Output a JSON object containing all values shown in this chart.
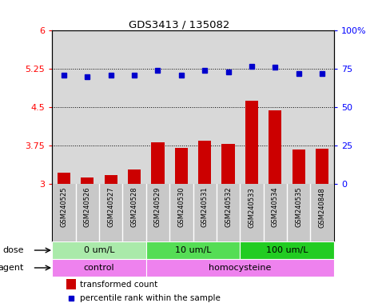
{
  "title": "GDS3413 / 135082",
  "samples": [
    "GSM240525",
    "GSM240526",
    "GSM240527",
    "GSM240528",
    "GSM240529",
    "GSM240530",
    "GSM240531",
    "GSM240532",
    "GSM240533",
    "GSM240534",
    "GSM240535",
    "GSM240848"
  ],
  "red_values": [
    3.22,
    3.12,
    3.18,
    3.28,
    3.82,
    3.7,
    3.85,
    3.78,
    4.63,
    4.44,
    3.67,
    3.69
  ],
  "blue_values": [
    71,
    70,
    71,
    71,
    74,
    71,
    74,
    73,
    77,
    76,
    72,
    72
  ],
  "ylim_left": [
    3.0,
    6.0
  ],
  "ylim_right": [
    0,
    100
  ],
  "yticks_left": [
    3.0,
    3.75,
    4.5,
    5.25,
    6.0
  ],
  "yticks_right": [
    0,
    25,
    50,
    75,
    100
  ],
  "ytick_labels_left": [
    "3",
    "3.75",
    "4.5",
    "5.25",
    "6"
  ],
  "ytick_labels_right": [
    "0",
    "25",
    "50",
    "75",
    "100%"
  ],
  "hlines": [
    3.75,
    4.5,
    5.25
  ],
  "dose_groups": [
    {
      "label": "0 um/L",
      "start": 0,
      "end": 4,
      "color": "#aaeaaa"
    },
    {
      "label": "10 um/L",
      "start": 4,
      "end": 8,
      "color": "#55dd55"
    },
    {
      "label": "100 um/L",
      "start": 8,
      "end": 12,
      "color": "#22cc22"
    }
  ],
  "agent_groups": [
    {
      "label": "control",
      "start": 0,
      "end": 4,
      "color": "#ee82ee"
    },
    {
      "label": "homocysteine",
      "start": 4,
      "end": 12,
      "color": "#ee82ee"
    }
  ],
  "bar_color": "#cc0000",
  "dot_color": "#0000cc",
  "background_color": "#ffffff",
  "plot_bg_color": "#d8d8d8",
  "xtick_bg_color": "#c8c8c8",
  "legend_red": "transformed count",
  "legend_blue": "percentile rank within the sample",
  "dose_label": "dose",
  "agent_label": "agent",
  "bar_width": 0.55
}
